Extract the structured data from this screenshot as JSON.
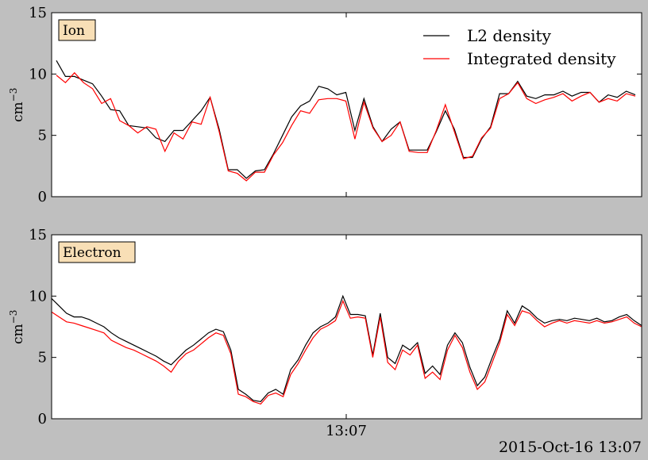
{
  "chart_data": [
    {
      "type": "line",
      "panel_label": "Ion",
      "ylabel": "cm",
      "ylabel_exp": "−3",
      "ylim": [
        0,
        15
      ],
      "yticks": [
        "0",
        "5",
        "10",
        "15"
      ],
      "legend": {
        "placement": "top-right",
        "entries": [
          "L2 density",
          "Integrated density"
        ]
      },
      "series": [
        {
          "name": "L2 density",
          "color": "#000000",
          "values": [
            11.1,
            9.8,
            9.8,
            9.5,
            9.2,
            8.2,
            7.1,
            7.0,
            5.8,
            5.7,
            5.6,
            4.8,
            4.5,
            5.4,
            5.4,
            6.2,
            7.0,
            8.1,
            5.5,
            2.2,
            2.2,
            1.5,
            2.1,
            2.2,
            3.5,
            5.0,
            6.5,
            7.4,
            7.8,
            9.0,
            8.8,
            8.3,
            8.5,
            5.4,
            8.0,
            5.7,
            4.5,
            5.5,
            6.1,
            3.8,
            3.8,
            3.8,
            5.3,
            7.0,
            5.5,
            3.2,
            3.2,
            4.7,
            5.7,
            8.4,
            8.4,
            9.4,
            8.2,
            8.0,
            8.3,
            8.3,
            8.6,
            8.2,
            8.5,
            8.5,
            7.7,
            8.3,
            8.1,
            8.6,
            8.3
          ]
        },
        {
          "name": "Integrated density",
          "color": "#ff0000",
          "values": [
            9.9,
            9.3,
            10.1,
            9.3,
            8.8,
            7.6,
            8.0,
            6.2,
            5.8,
            5.2,
            5.7,
            5.5,
            3.7,
            5.2,
            4.7,
            6.1,
            5.9,
            8.1,
            5.3,
            2.1,
            1.9,
            1.3,
            2.0,
            2.0,
            3.4,
            4.4,
            5.8,
            7.0,
            6.8,
            7.9,
            8.0,
            8.0,
            7.8,
            4.7,
            7.7,
            5.6,
            4.5,
            5.0,
            6.1,
            3.7,
            3.6,
            3.6,
            5.4,
            7.5,
            5.3,
            3.1,
            3.3,
            4.8,
            5.6,
            8.0,
            8.4,
            9.3,
            8.0,
            7.6,
            7.9,
            8.1,
            8.4,
            7.8,
            8.2,
            8.5,
            7.7,
            8.0,
            7.8,
            8.4,
            8.2
          ]
        }
      ]
    },
    {
      "type": "line",
      "panel_label": "Electron",
      "ylabel": "cm",
      "ylabel_exp": "−3",
      "ylim": [
        0,
        15
      ],
      "yticks": [
        "0",
        "5",
        "10",
        "15"
      ],
      "xtick_label": "13:07",
      "series": [
        {
          "name": "",
          "color": "#000000",
          "values": [
            9.8,
            9.2,
            8.6,
            8.3,
            8.3,
            8.1,
            7.8,
            7.5,
            7.0,
            6.6,
            6.3,
            6.0,
            5.7,
            5.4,
            5.1,
            4.7,
            4.4,
            5.0,
            5.6,
            6.0,
            6.5,
            7.0,
            7.3,
            7.1,
            5.6,
            2.4,
            2.0,
            1.5,
            1.4,
            2.1,
            2.4,
            2.0,
            4.0,
            4.8,
            6.0,
            7.0,
            7.5,
            7.8,
            8.3,
            10.0,
            8.5,
            8.5,
            8.4,
            5.2,
            8.6,
            5.0,
            4.5,
            6.0,
            5.6,
            6.2,
            3.7,
            4.3,
            3.6,
            6.0,
            7.0,
            6.2,
            4.2,
            2.7,
            3.4,
            5.0,
            6.5,
            8.8,
            7.8,
            9.2,
            8.8,
            8.2,
            7.8,
            8.0,
            8.1,
            8.0,
            8.2,
            8.1,
            8.0,
            8.2,
            7.9,
            8.0,
            8.3,
            8.5,
            8.0,
            7.6
          ]
        },
        {
          "name": "",
          "color": "#ff0000",
          "values": [
            8.7,
            8.3,
            7.9,
            7.8,
            7.6,
            7.4,
            7.2,
            7.0,
            6.4,
            6.1,
            5.8,
            5.6,
            5.3,
            5.0,
            4.7,
            4.3,
            3.8,
            4.7,
            5.3,
            5.6,
            6.1,
            6.6,
            7.0,
            6.8,
            5.3,
            2.0,
            1.8,
            1.4,
            1.2,
            1.9,
            2.1,
            1.8,
            3.6,
            4.5,
            5.6,
            6.6,
            7.3,
            7.6,
            8.0,
            9.6,
            8.2,
            8.3,
            8.2,
            5.0,
            8.3,
            4.6,
            4.0,
            5.6,
            5.2,
            6.0,
            3.3,
            3.8,
            3.2,
            5.6,
            6.8,
            5.8,
            3.8,
            2.4,
            3.0,
            4.6,
            6.2,
            8.5,
            7.6,
            8.8,
            8.6,
            8.0,
            7.5,
            7.8,
            8.0,
            7.8,
            8.0,
            7.9,
            7.8,
            8.0,
            7.8,
            7.9,
            8.1,
            8.3,
            7.8,
            7.5
          ]
        }
      ]
    }
  ],
  "footer": {
    "timestamp": "2015-Oct-16 13:07"
  }
}
